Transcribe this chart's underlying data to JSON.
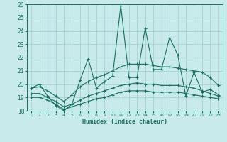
{
  "xlabel": "Humidex (Indice chaleur)",
  "xlim": [
    -0.5,
    23.5
  ],
  "ylim": [
    18,
    26
  ],
  "xticks": [
    0,
    1,
    2,
    3,
    4,
    5,
    6,
    7,
    8,
    9,
    10,
    11,
    12,
    13,
    14,
    15,
    16,
    17,
    18,
    19,
    20,
    21,
    22,
    23
  ],
  "yticks": [
    18,
    19,
    20,
    21,
    22,
    23,
    24,
    25,
    26
  ],
  "bg_color": "#c8eaea",
  "grid_color": "#a0cccc",
  "line_color": "#1a7060",
  "lines": [
    {
      "x": [
        0,
        1,
        2,
        3,
        4,
        5,
        6,
        7,
        8,
        9,
        10,
        11,
        12,
        13,
        14,
        15,
        16,
        17,
        18,
        19,
        20,
        21,
        22,
        23
      ],
      "y": [
        19.7,
        20.0,
        19.1,
        18.4,
        18.0,
        18.5,
        20.3,
        21.9,
        19.7,
        20.2,
        20.6,
        25.9,
        20.5,
        20.5,
        24.2,
        21.1,
        21.1,
        23.5,
        22.2,
        19.1,
        20.9,
        19.4,
        19.6,
        19.2
      ]
    },
    {
      "x": [
        0,
        1,
        2,
        3,
        4,
        5,
        6,
        7,
        8,
        9,
        10,
        11,
        12,
        13,
        14,
        15,
        16,
        17,
        18,
        19,
        20,
        21,
        22,
        23
      ],
      "y": [
        19.7,
        19.8,
        19.5,
        19.1,
        18.7,
        19.2,
        19.8,
        20.2,
        20.5,
        20.7,
        21.0,
        21.3,
        21.5,
        21.5,
        21.5,
        21.4,
        21.3,
        21.3,
        21.2,
        21.1,
        21.0,
        20.9,
        20.5,
        19.9
      ]
    },
    {
      "x": [
        0,
        1,
        2,
        3,
        4,
        5,
        6,
        7,
        8,
        9,
        10,
        11,
        12,
        13,
        14,
        15,
        16,
        17,
        18,
        19,
        20,
        21,
        22,
        23
      ],
      "y": [
        19.3,
        19.3,
        19.0,
        18.7,
        18.3,
        18.5,
        18.8,
        19.1,
        19.3,
        19.5,
        19.7,
        19.9,
        20.0,
        20.1,
        20.0,
        20.0,
        19.9,
        19.9,
        19.9,
        19.8,
        19.7,
        19.5,
        19.3,
        19.1
      ]
    },
    {
      "x": [
        0,
        1,
        2,
        3,
        4,
        5,
        6,
        7,
        8,
        9,
        10,
        11,
        12,
        13,
        14,
        15,
        16,
        17,
        18,
        19,
        20,
        21,
        22,
        23
      ],
      "y": [
        19.0,
        19.0,
        18.8,
        18.5,
        18.1,
        18.3,
        18.5,
        18.7,
        18.9,
        19.0,
        19.2,
        19.4,
        19.5,
        19.5,
        19.5,
        19.4,
        19.4,
        19.4,
        19.4,
        19.3,
        19.2,
        19.1,
        19.0,
        18.9
      ]
    }
  ]
}
